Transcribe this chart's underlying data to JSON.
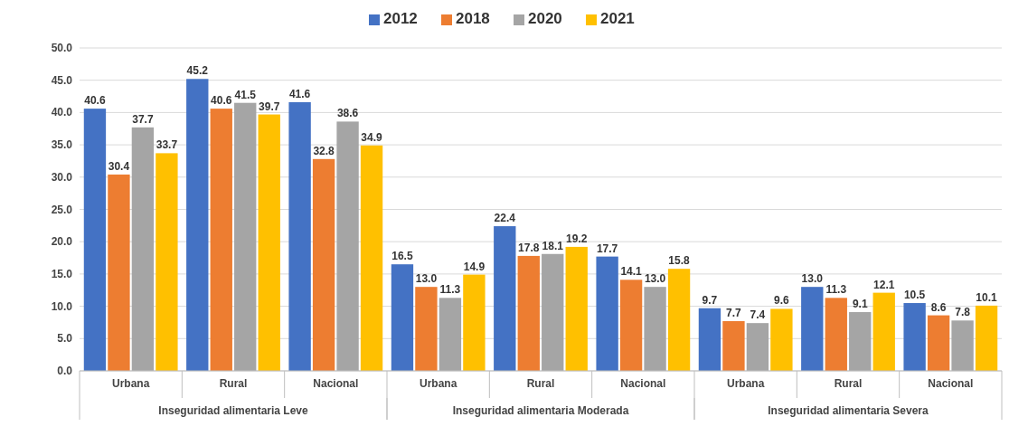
{
  "chart_data": {
    "type": "bar",
    "categories": [
      "Urbana",
      "Rural",
      "Nacional",
      "Urbana",
      "Rural",
      "Nacional",
      "Urbana",
      "Rural",
      "Nacional"
    ],
    "annotations": [
      "Inseguridad alimentaria Leve",
      "Inseguridad alimentaria Moderada",
      "Inseguridad alimentaria Severa"
    ],
    "series": [
      {
        "name": "2012",
        "color": "#4472c4",
        "values": [
          40.6,
          45.2,
          41.6,
          16.5,
          22.4,
          17.7,
          9.7,
          13.0,
          10.5
        ],
        "value_labels": [
          "40.6",
          "45.2",
          "41.6",
          "16.5",
          "22.4",
          "17.7",
          "9.7",
          "13.0",
          "10.5"
        ]
      },
      {
        "name": "2018",
        "color": "#ed7d31",
        "values": [
          30.4,
          40.6,
          32.8,
          13.0,
          17.8,
          14.1,
          7.7,
          11.3,
          8.6
        ],
        "value_labels": [
          "30.4",
          "40.6",
          "32.8",
          "13.0",
          "17.8",
          "14.1",
          "7.7",
          "11.3",
          "8.6"
        ]
      },
      {
        "name": "2020",
        "color": "#a5a5a5",
        "values": [
          37.7,
          41.5,
          38.6,
          11.3,
          18.1,
          13.0,
          7.4,
          9.1,
          7.8
        ],
        "value_labels": [
          "37.7",
          "41.5",
          "38.6",
          "11.3",
          "18.1",
          "13.0",
          "7.4",
          "9.1",
          "7.8"
        ]
      },
      {
        "name": "2021",
        "color": "#ffc000",
        "values": [
          33.7,
          39.7,
          34.9,
          14.9,
          19.2,
          15.8,
          9.6,
          12.1,
          10.1
        ],
        "value_labels": [
          "33.7",
          "39.7",
          "34.9",
          "14.9",
          "19.2",
          "15.8",
          "9.6",
          "12.1",
          "10.1"
        ]
      }
    ],
    "ylim": [
      0,
      50
    ],
    "yticks": [
      {
        "value": 0,
        "label": "0.0"
      },
      {
        "value": 5,
        "label": "5.0"
      },
      {
        "value": 10,
        "label": "10.0"
      },
      {
        "value": 15,
        "label": "15.0"
      },
      {
        "value": 20,
        "label": "20.0"
      },
      {
        "value": 25,
        "label": "25.0"
      },
      {
        "value": 30,
        "label": "30.0"
      },
      {
        "value": 35,
        "label": "35.0"
      },
      {
        "value": 40,
        "label": "40.0"
      },
      {
        "value": 45,
        "label": "45.0"
      },
      {
        "value": 50,
        "label": "50.0"
      }
    ],
    "grid": "y",
    "legend": "top"
  }
}
